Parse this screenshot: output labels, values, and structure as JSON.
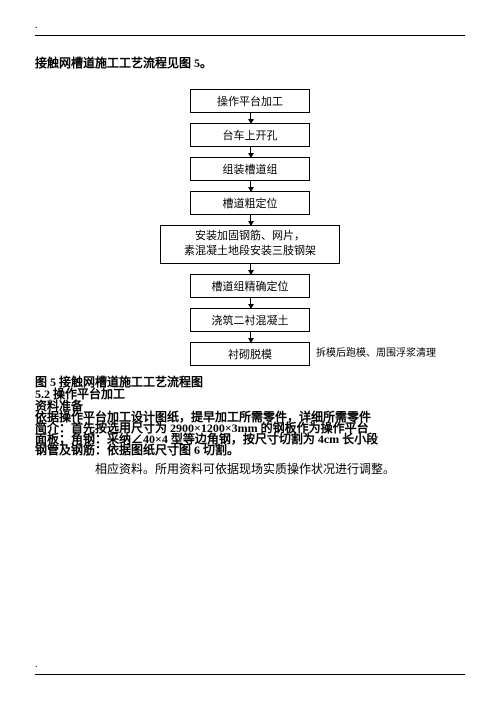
{
  "page_marker_top": ".",
  "intro_text": "接触网槽道施工工艺流程见图 5。",
  "flow": {
    "nodes": [
      {
        "text": "操作平台加工",
        "cls": "small"
      },
      {
        "text": "台车上开孔",
        "cls": "small"
      },
      {
        "text": "组装槽道组",
        "cls": "small"
      },
      {
        "text": "槽道粗定位",
        "cls": "small"
      },
      {
        "text": "安装加固钢筋、网片，\n素混凝土地段安装三肢钢架",
        "cls": "wide"
      },
      {
        "text": "槽道组精确定位",
        "cls": "small"
      },
      {
        "text": "浇筑二衬混凝土",
        "cls": "small"
      },
      {
        "text": "衬砌脱模",
        "cls": "small"
      }
    ],
    "last_side_text": "拆模后跑模、周围浮浆清理",
    "box_border": "#000000",
    "box_bg": "#ffffff",
    "font_size": 11
  },
  "caption_lines": [
    "图 5 接触网槽道施工工艺流程图",
    "5.2 操作平台加工",
    "资料准备"
  ],
  "body_overlap_lines": [
    "依据操作平台加工设计图纸，提早加工所需零件，详细所需零件",
    "简介：首先按选用尺寸为 2900×1200×3mm 的钢板作为操作平台",
    "面板；角钢：采纳∠40×4 型等边角钢，按尺寸切割为 4cm 长小段",
    "钢管及钢筋：依据图纸尺寸图 6 切割。"
  ],
  "body_para2": "相应资料。所用资料可依据现场实质操作状况进行调整。",
  "page_marker_bottom": ".",
  "colors": {
    "text": "#000000",
    "bg": "#ffffff"
  }
}
